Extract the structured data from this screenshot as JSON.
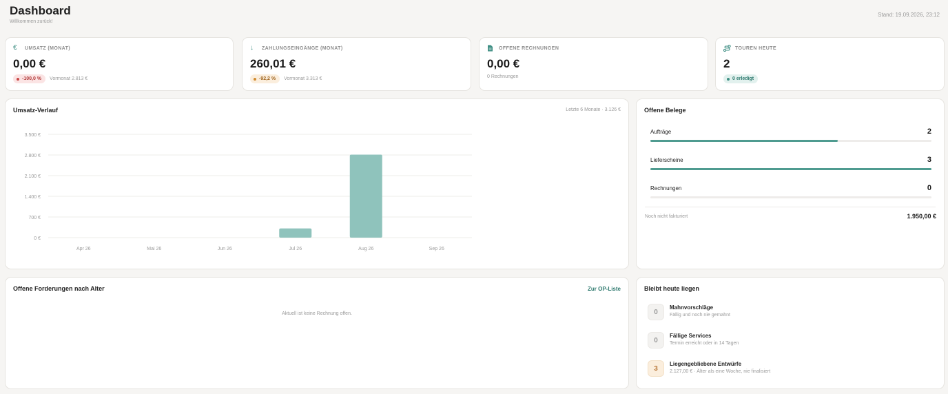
{
  "header": {
    "title": "Dashboard",
    "subtitle": "Willkommen zurück!",
    "stand": "Stand: 19.09.2026, 23:12"
  },
  "kpis": [
    {
      "label": "UMSATZ (MONAT)",
      "icon": "euro-icon",
      "value": "0,00 €",
      "badge": "-100,0 %",
      "badge_tone": "red",
      "note": "Vormonat 2.813 €"
    },
    {
      "label": "ZAHLUNGSEINGÄNGE (MONAT)",
      "icon": "arrow-down-icon",
      "value": "260,01 €",
      "badge": "-92,2 %",
      "badge_tone": "amber",
      "note": "Vormonat 3.313 €"
    },
    {
      "label": "OFFENE RECHNUNGEN",
      "icon": "document-icon",
      "value": "0,00 €",
      "badge": "",
      "badge_tone": "",
      "note": "0 Rechnungen"
    },
    {
      "label": "TOUREN HEUTE",
      "icon": "route-icon",
      "value": "2",
      "badge": "0 erledigt",
      "badge_tone": "green",
      "note": ""
    }
  ],
  "revenue_card": {
    "title": "Umsatz-Verlauf",
    "meta": "Letzte 6 Monate · 3.126 €"
  },
  "chart_data": {
    "type": "bar",
    "categories": [
      "Apr 26",
      "Mai 26",
      "Jun 26",
      "Jul 26",
      "Aug 26",
      "Sep 26"
    ],
    "values": [
      0,
      0,
      0,
      313,
      2813,
      0
    ],
    "ylim": [
      0,
      3500
    ],
    "yticks": [
      0,
      700,
      1400,
      2100,
      2800,
      3500
    ],
    "ytick_labels": [
      "0 €",
      "700 €",
      "1.400 €",
      "2.100 €",
      "2.800 €",
      "3.500 €"
    ],
    "bar_color": "#8fc3bc",
    "grid": true
  },
  "belege": {
    "title": "Offene Belege",
    "rows": [
      {
        "label": "Aufträge",
        "value": "2",
        "fill": 0.667
      },
      {
        "label": "Lieferscheine",
        "value": "3",
        "fill": 1.0
      },
      {
        "label": "Rechnungen",
        "value": "0",
        "fill": 0
      }
    ],
    "footer_label": "Noch nicht fakturiert",
    "footer_value": "1.950,00 €"
  },
  "forderungen": {
    "title": "Offene Forderungen nach Alter",
    "link": "Zur OP-Liste",
    "empty": "Aktuell ist keine Rechnung offen."
  },
  "liegen": {
    "title": "Bleibt heute liegen",
    "items": [
      {
        "count": "0",
        "title": "Mahnvorschläge",
        "sub": "Fällig und noch nie gemahnt",
        "tone": "neutral"
      },
      {
        "count": "0",
        "title": "Fällige Services",
        "sub": "Termin erreicht oder in 14 Tagen",
        "tone": "neutral"
      },
      {
        "count": "3",
        "title": "Liegengebliebene Entwürfe",
        "sub": "2.127,00 € · Älter als eine Woche, nie finalisiert",
        "tone": "warn"
      }
    ]
  },
  "colors": {
    "accent": "#2f7a6f",
    "bar": "#8fc3bc",
    "progress": "#4f9b90"
  }
}
